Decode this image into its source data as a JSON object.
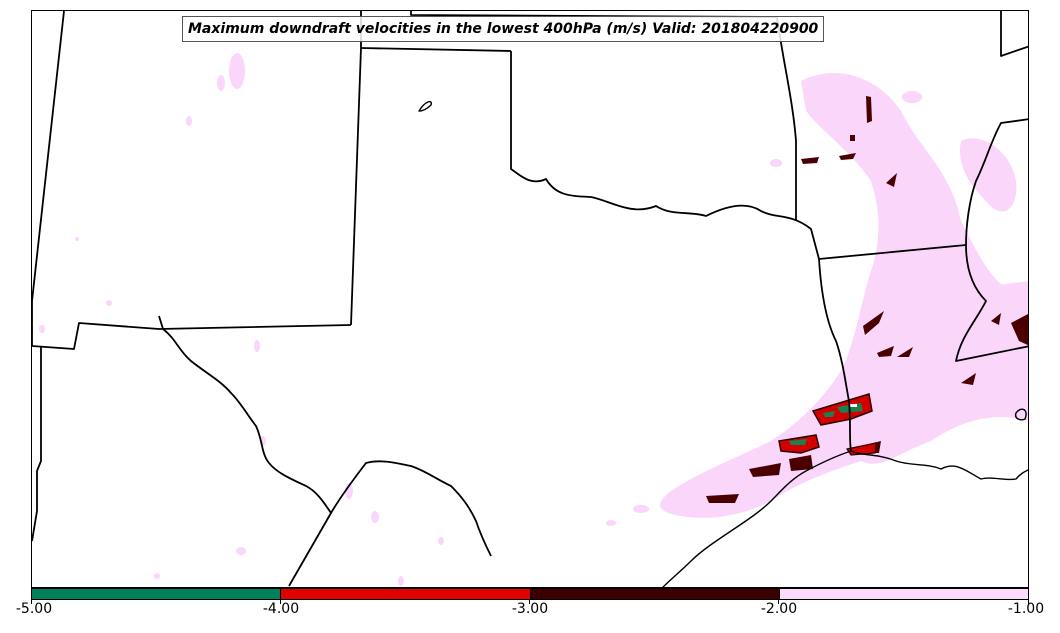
{
  "title": "Maximum downdraft velocities in the lowest 400hPa (m/s) Valid: 201804220900",
  "colorbar": {
    "tick_labels": [
      "-5.00",
      "-4.00",
      "-3.00",
      "-2.00",
      "-1.00"
    ],
    "bins": [
      {
        "from": -5.0,
        "to": -4.0,
        "color": "#00805a"
      },
      {
        "from": -4.0,
        "to": -3.0,
        "color": "#e00000"
      },
      {
        "from": -3.0,
        "to": -2.0,
        "color": "#3d0000"
      },
      {
        "from": -2.0,
        "to": -1.0,
        "color": "#fcdcfc"
      }
    ]
  },
  "colors": {
    "boundary": "#000000",
    "light_field": "#fad6fa",
    "dark_field": "#4a0000",
    "red_field": "#d40000",
    "green_field": "#1a8050"
  }
}
